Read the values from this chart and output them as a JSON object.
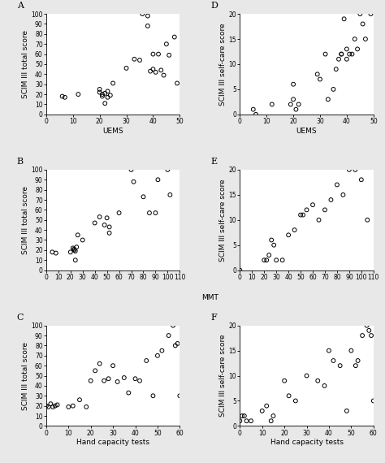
{
  "panels": [
    {
      "label": "A",
      "xlabel": "UEMS",
      "ylabel": "SCIM III total score",
      "show_xlabel": true,
      "xlim": [
        0,
        50
      ],
      "ylim": [
        0,
        100
      ],
      "xticks": [
        0,
        10,
        20,
        30,
        40,
        50
      ],
      "yticks": [
        0,
        10,
        20,
        30,
        40,
        50,
        60,
        70,
        80,
        90,
        100
      ],
      "x": [
        6,
        7,
        12,
        20,
        20,
        21,
        21,
        22,
        22,
        23,
        23,
        24,
        25,
        30,
        33,
        35,
        36,
        38,
        38,
        39,
        40,
        40,
        41,
        42,
        43,
        44,
        45,
        46,
        48,
        49
      ],
      "y": [
        18,
        17,
        20,
        25,
        22,
        20,
        18,
        21,
        11,
        17,
        23,
        19,
        31,
        46,
        55,
        54,
        100,
        98,
        88,
        43,
        60,
        45,
        42,
        60,
        44,
        39,
        70,
        59,
        77,
        31
      ]
    },
    {
      "label": "D",
      "xlabel": "UEMS",
      "ylabel": "SCIM III self-care score",
      "show_xlabel": true,
      "xlim": [
        0,
        50
      ],
      "ylim": [
        0,
        20
      ],
      "xticks": [
        0,
        10,
        20,
        30,
        40,
        50
      ],
      "yticks": [
        0,
        5,
        10,
        15,
        20
      ],
      "x": [
        5,
        6,
        12,
        19,
        20,
        20,
        21,
        22,
        29,
        30,
        32,
        33,
        35,
        36,
        37,
        38,
        38,
        39,
        40,
        40,
        41,
        42,
        43,
        44,
        45,
        46,
        47,
        49
      ],
      "y": [
        1,
        0,
        2,
        2,
        6,
        3,
        1,
        2,
        8,
        7,
        12,
        3,
        5,
        9,
        11,
        12,
        12,
        19,
        13,
        11,
        12,
        12,
        15,
        13,
        20,
        18,
        15,
        20
      ]
    },
    {
      "label": "B",
      "xlabel": "MMT",
      "ylabel": "SCIM III total score",
      "show_xlabel": false,
      "xlim": [
        0,
        110
      ],
      "ylim": [
        0,
        100
      ],
      "xticks": [
        0,
        10,
        20,
        30,
        40,
        50,
        60,
        70,
        80,
        90,
        100,
        110
      ],
      "yticks": [
        0,
        10,
        20,
        30,
        40,
        50,
        60,
        70,
        80,
        90,
        100
      ],
      "x": [
        5,
        8,
        20,
        22,
        23,
        23,
        24,
        24,
        25,
        26,
        30,
        40,
        44,
        48,
        50,
        52,
        52,
        60,
        70,
        72,
        80,
        85,
        90,
        92,
        100,
        102
      ],
      "y": [
        18,
        17,
        18,
        22,
        21,
        20,
        19,
        10,
        23,
        35,
        30,
        47,
        53,
        45,
        52,
        43,
        37,
        57,
        100,
        88,
        73,
        57,
        57,
        90,
        100,
        75
      ]
    },
    {
      "label": "E",
      "xlabel": "MMT",
      "ylabel": "SCIM III self-care score",
      "show_xlabel": false,
      "xlim": [
        0,
        110
      ],
      "ylim": [
        0,
        20
      ],
      "xticks": [
        0,
        10,
        20,
        30,
        40,
        50,
        60,
        70,
        80,
        90,
        100,
        110
      ],
      "yticks": [
        0,
        5,
        10,
        15,
        20
      ],
      "x": [
        0,
        20,
        22,
        24,
        26,
        28,
        30,
        35,
        40,
        45,
        50,
        52,
        55,
        60,
        65,
        70,
        75,
        80,
        85,
        90,
        95,
        100,
        105
      ],
      "y": [
        0,
        2,
        2,
        3,
        6,
        5,
        2,
        2,
        7,
        8,
        11,
        11,
        12,
        13,
        10,
        12,
        14,
        17,
        15,
        20,
        20,
        18,
        10
      ]
    },
    {
      "label": "C",
      "xlabel": "Hand capacity tests",
      "ylabel": "SCIM III total score",
      "show_xlabel": true,
      "xlim": [
        0,
        60
      ],
      "ylim": [
        0,
        100
      ],
      "xticks": [
        0,
        10,
        20,
        30,
        40,
        50,
        60
      ],
      "yticks": [
        0,
        10,
        20,
        30,
        40,
        50,
        60,
        70,
        80,
        90,
        100
      ],
      "x": [
        0,
        1,
        2,
        3,
        4,
        5,
        10,
        12,
        15,
        18,
        20,
        22,
        24,
        26,
        28,
        30,
        32,
        35,
        37,
        40,
        42,
        45,
        48,
        50,
        52,
        55,
        57,
        58,
        59,
        60
      ],
      "y": [
        20,
        19,
        22,
        19,
        20,
        21,
        19,
        20,
        26,
        19,
        45,
        55,
        62,
        45,
        47,
        60,
        44,
        48,
        33,
        47,
        45,
        65,
        30,
        70,
        75,
        90,
        100,
        80,
        82,
        30
      ]
    },
    {
      "label": "F",
      "xlabel": "Hand capacity tests",
      "ylabel": "SCIM III self-care score",
      "show_xlabel": true,
      "xlim": [
        0,
        60
      ],
      "ylim": [
        0,
        20
      ],
      "xticks": [
        0,
        10,
        20,
        30,
        40,
        50,
        60
      ],
      "yticks": [
        0,
        5,
        10,
        15,
        20
      ],
      "x": [
        0,
        1,
        2,
        3,
        5,
        10,
        12,
        14,
        15,
        20,
        22,
        25,
        30,
        35,
        38,
        40,
        42,
        45,
        48,
        50,
        52,
        53,
        55,
        57,
        58,
        59,
        60
      ],
      "y": [
        1,
        2,
        2,
        1,
        1,
        3,
        4,
        1,
        2,
        9,
        6,
        5,
        10,
        9,
        8,
        15,
        13,
        12,
        3,
        15,
        12,
        13,
        18,
        20,
        19,
        18,
        5
      ]
    }
  ],
  "mmt_xlabel": "MMT",
  "marker_size": 12,
  "marker_color": "black",
  "marker_facecolor": "none",
  "marker_edgewidth": 0.7,
  "background_color": "#e8e8e8",
  "plot_bg": "white",
  "label_fontsize": 6.5,
  "tick_fontsize": 5.5,
  "panel_label_fontsize": 8
}
